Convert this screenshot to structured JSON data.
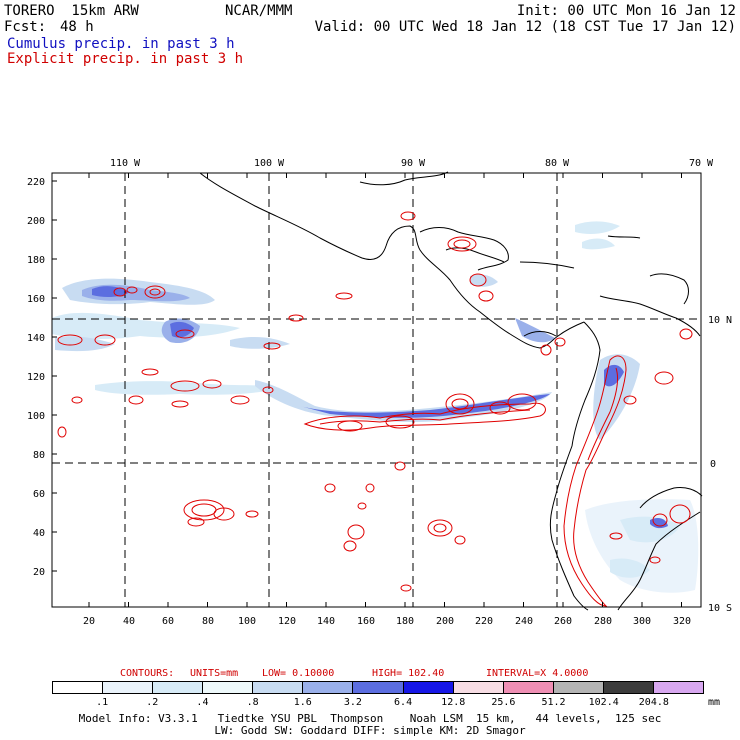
{
  "header": {
    "model": "TORERO  15km ARW",
    "org": "NCAR/MMM",
    "init": "Init: 00 UTC Mon 16 Jan 12",
    "fcst_label": "Fcst:",
    "fcst_value": "48 h",
    "valid": "Valid: 00 UTC Wed 18 Jan 12 (18 CST Tue 17 Jan 12)",
    "field_cumulus": "Cumulus precip. in past 3 h",
    "field_explicit": "Explicit precip. in past 3 h"
  },
  "colors": {
    "cumulus_text": "#1010c0",
    "explicit_text": "#d00000",
    "explicit_contour": "#e00000",
    "coastline": "#000000"
  },
  "map": {
    "lon_labels": [
      "110 W",
      "100 W",
      "90 W",
      "80 W",
      "70 W"
    ],
    "lat_labels": [
      "10 N",
      "0",
      "10 S"
    ],
    "x_ticks": [
      "20",
      "40",
      "60",
      "80",
      "100",
      "120",
      "140",
      "160",
      "180",
      "200",
      "220",
      "240",
      "260",
      "280",
      "300",
      "320"
    ],
    "y_ticks": [
      "220",
      "200",
      "180",
      "160",
      "140",
      "120",
      "100",
      "80",
      "60",
      "40",
      "20"
    ]
  },
  "contours": {
    "label": "CONTOURS:",
    "units": "UNITS=mm",
    "low": "LOW= 0.10000",
    "high": "HIGH=  102.40",
    "interval": "INTERVAL=X  4.0000"
  },
  "legend": {
    "labels": [
      ".1",
      ".2",
      ".4",
      ".8",
      "1.6",
      "3.2",
      "6.4",
      "12.8",
      "25.6",
      "51.2",
      "102.4",
      "204.8"
    ],
    "unit": "mm",
    "colors": [
      "#ffffff",
      "#eaf3fb",
      "#d7ebf7",
      "#eef9fb",
      "#c8dcf2",
      "#9ab0ea",
      "#5c6ee0",
      "#1616e6",
      "#f7dde4",
      "#ef8fb4",
      "#b4b4b4",
      "#3c3c3c",
      "#d8a8f0"
    ]
  },
  "footer": {
    "line1": "Model Info: V3.3.1   Tiedtke YSU PBL  Thompson    Noah LSM  15 km,   44 levels,  125 sec",
    "line2": "LW: Godd SW: Goddard DIFF: simple KM: 2D Smagor"
  }
}
